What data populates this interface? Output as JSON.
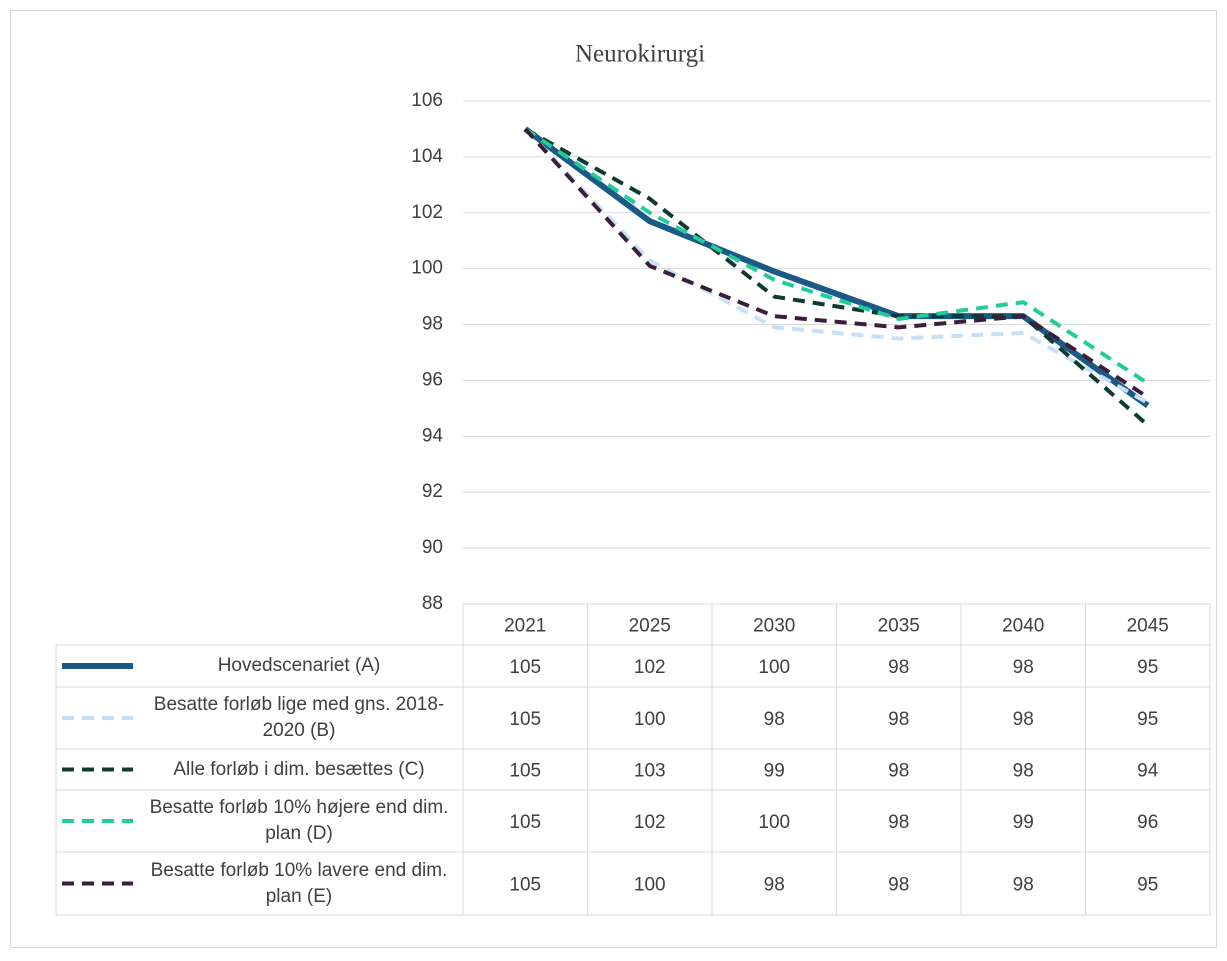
{
  "chart_data": {
    "type": "line",
    "title": "Neurokirurgi",
    "categories": [
      "2021",
      "2025",
      "2030",
      "2035",
      "2040",
      "2045"
    ],
    "ylim": [
      88,
      106
    ],
    "yticks": [
      88,
      90,
      92,
      94,
      96,
      98,
      100,
      102,
      104,
      106
    ],
    "grid": true,
    "data_table": true,
    "series": [
      {
        "name": "Hovedscenariet (A)",
        "color": "#1b5a86",
        "dashed": false,
        "values": [
          105,
          101.7,
          99.9,
          98.3,
          98.3,
          95.1
        ],
        "value_labels": [
          "105",
          "102",
          "100",
          "98",
          "98",
          "95"
        ]
      },
      {
        "name": "Besatte forløb lige med gns. 2018-2020 (B)",
        "color": "#c6e0f5",
        "dashed": true,
        "values": [
          105,
          100.3,
          97.9,
          97.5,
          97.7,
          95.2
        ],
        "value_labels": [
          "105",
          "100",
          "98",
          "98",
          "98",
          "95"
        ]
      },
      {
        "name": "Alle forløb i dim. besættes (C)",
        "color": "#0e3b31",
        "dashed": true,
        "values": [
          105,
          102.5,
          99.0,
          98.3,
          98.3,
          94.4
        ],
        "value_labels": [
          "105",
          "103",
          "99",
          "98",
          "98",
          "94"
        ]
      },
      {
        "name": "Besatte forløb 10% højere end dim. plan (D)",
        "color": "#22cc9a",
        "dashed": true,
        "values": [
          105,
          102.0,
          99.6,
          98.2,
          98.8,
          95.9
        ],
        "value_labels": [
          "105",
          "102",
          "100",
          "98",
          "99",
          "96"
        ]
      },
      {
        "name": "Besatte forløb 10% lavere end dim. plan (E)",
        "color": "#3b1d3c",
        "dashed": true,
        "values": [
          105,
          100.1,
          98.3,
          97.9,
          98.3,
          95.4
        ],
        "value_labels": [
          "105",
          "100",
          "98",
          "98",
          "98",
          "95"
        ]
      }
    ]
  }
}
